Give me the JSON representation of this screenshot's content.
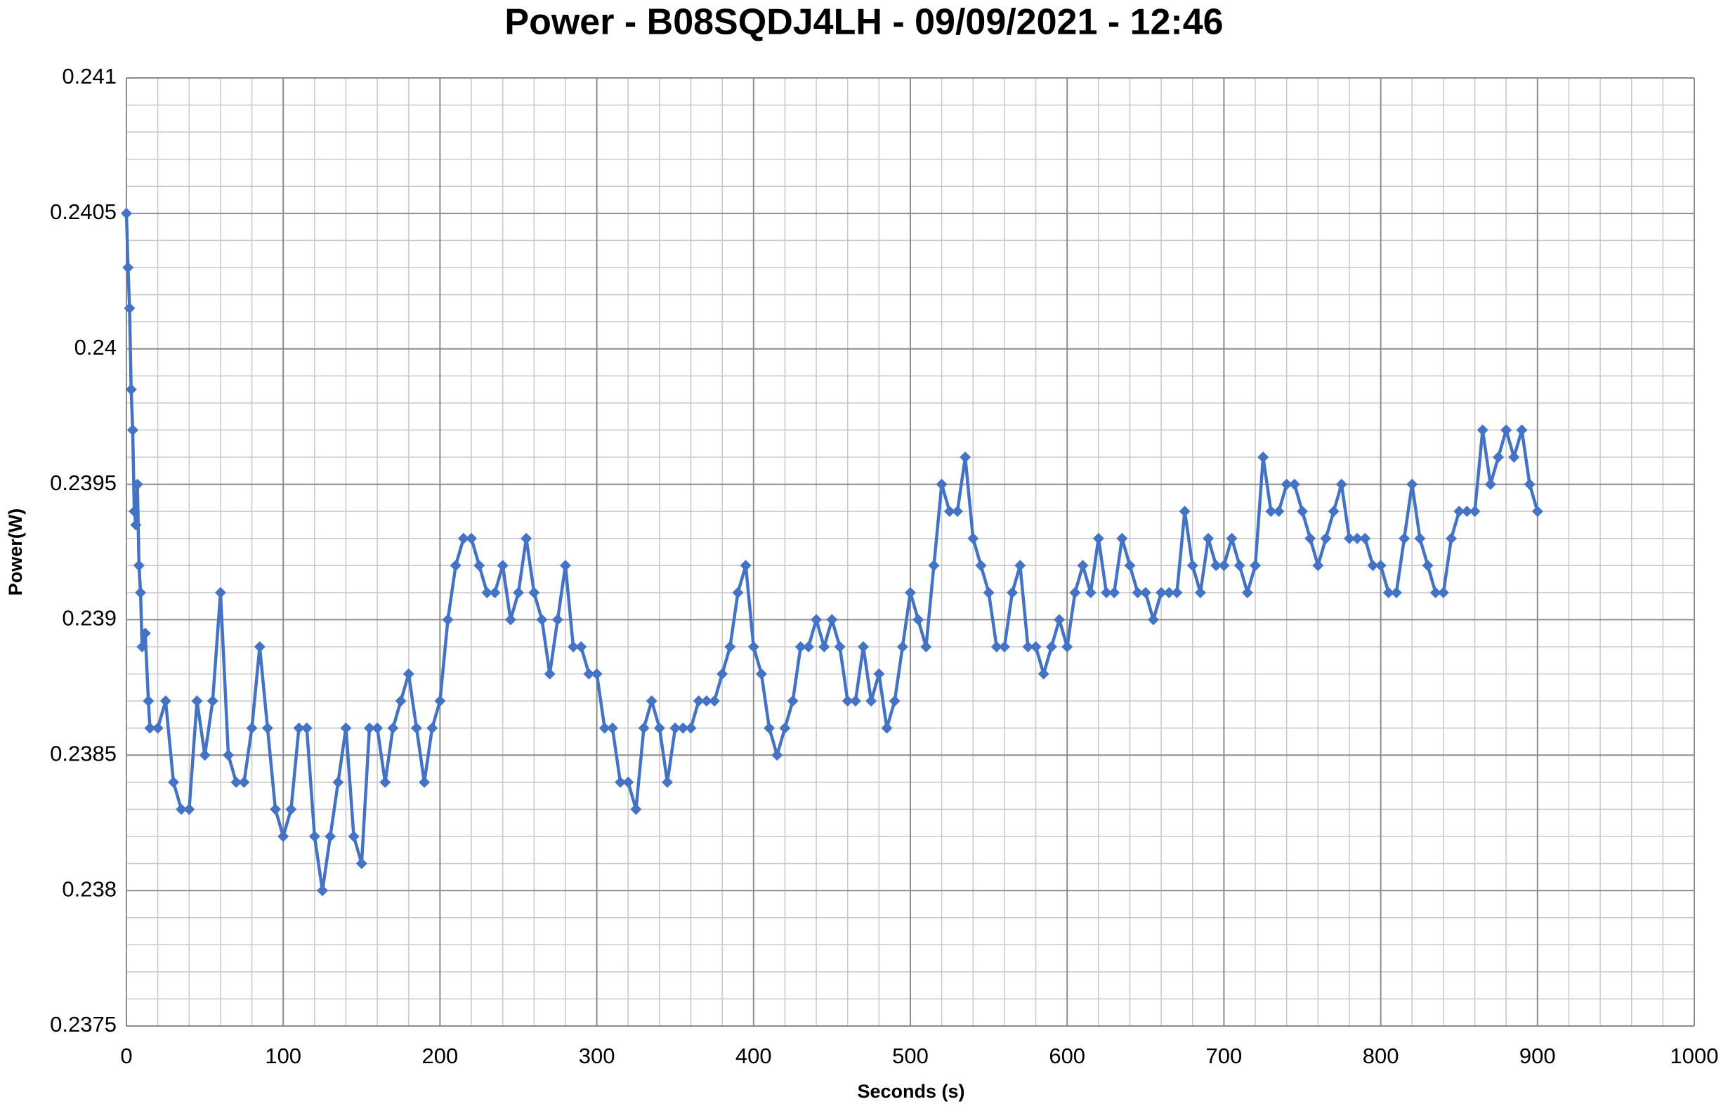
{
  "chart_data": {
    "type": "line",
    "title": "Power - B08SQDJ4LH - 09/09/2021 - 12:46",
    "x_label": "Seconds (s)",
    "y_label": "Power(W)",
    "x": [
      0,
      1,
      2,
      3,
      4,
      5,
      6,
      7,
      8,
      9,
      10,
      12,
      14,
      15,
      20,
      25,
      30,
      35,
      40,
      45,
      50,
      55,
      60,
      65,
      70,
      75,
      80,
      85,
      90,
      95,
      100,
      105,
      110,
      115,
      120,
      125,
      130,
      135,
      140,
      145,
      150,
      155,
      160,
      165,
      170,
      175,
      180,
      185,
      190,
      195,
      200,
      205,
      210,
      215,
      220,
      225,
      230,
      235,
      240,
      245,
      250,
      255,
      260,
      265,
      270,
      275,
      280,
      285,
      290,
      295,
      300,
      305,
      310,
      315,
      320,
      325,
      330,
      335,
      340,
      345,
      350,
      355,
      360,
      365,
      370,
      375,
      380,
      385,
      390,
      395,
      400,
      405,
      410,
      415,
      420,
      425,
      430,
      435,
      440,
      445,
      450,
      455,
      460,
      465,
      470,
      475,
      480,
      485,
      490,
      495,
      500,
      505,
      510,
      515,
      520,
      525,
      530,
      535,
      540,
      545,
      550,
      555,
      560,
      565,
      570,
      575,
      580,
      585,
      590,
      595,
      600,
      605,
      610,
      615,
      620,
      625,
      630,
      635,
      640,
      645,
      650,
      655,
      660,
      665,
      670,
      675,
      680,
      685,
      690,
      695,
      700,
      705,
      710,
      715,
      720,
      725,
      730,
      735,
      740,
      745,
      750,
      755,
      760,
      765,
      770,
      775,
      780,
      785,
      790,
      795,
      800,
      805,
      810,
      815,
      820,
      825,
      830,
      835,
      840,
      845,
      850,
      855,
      860,
      865,
      870,
      875,
      880,
      885,
      890,
      895,
      900
    ],
    "series": [
      {
        "color": "#4472c4",
        "values": [
          0.2405,
          0.2403,
          0.24015,
          0.23985,
          0.2397,
          0.2394,
          0.23935,
          0.2395,
          0.2392,
          0.2391,
          0.2389,
          0.23895,
          0.2387,
          0.2386,
          0.2386,
          0.2387,
          0.2384,
          0.2383,
          0.2383,
          0.2387,
          0.2385,
          0.2387,
          0.2391,
          0.2385,
          0.2384,
          0.2384,
          0.2386,
          0.2389,
          0.2386,
          0.2383,
          0.2382,
          0.2383,
          0.2386,
          0.2386,
          0.2382,
          0.238,
          0.2382,
          0.2384,
          0.2386,
          0.2382,
          0.2381,
          0.2386,
          0.2386,
          0.2384,
          0.2386,
          0.2387,
          0.2388,
          0.2386,
          0.2384,
          0.2386,
          0.2387,
          0.239,
          0.2392,
          0.2393,
          0.2393,
          0.2392,
          0.2391,
          0.2391,
          0.2392,
          0.239,
          0.2391,
          0.2393,
          0.2391,
          0.239,
          0.2388,
          0.239,
          0.2392,
          0.2389,
          0.2389,
          0.2388,
          0.2388,
          0.2386,
          0.2386,
          0.2384,
          0.2384,
          0.2383,
          0.2386,
          0.2387,
          0.2386,
          0.2384,
          0.2386,
          0.2386,
          0.2386,
          0.2387,
          0.2387,
          0.2387,
          0.2388,
          0.2389,
          0.2391,
          0.2392,
          0.2389,
          0.2388,
          0.2386,
          0.2385,
          0.2386,
          0.2387,
          0.2389,
          0.2389,
          0.239,
          0.2389,
          0.239,
          0.2389,
          0.2387,
          0.2387,
          0.2389,
          0.2387,
          0.2388,
          0.2386,
          0.2387,
          0.2389,
          0.2391,
          0.239,
          0.2389,
          0.2392,
          0.2395,
          0.2394,
          0.2394,
          0.2396,
          0.2393,
          0.2392,
          0.2391,
          0.2389,
          0.2389,
          0.2391,
          0.2392,
          0.2389,
          0.2389,
          0.2388,
          0.2389,
          0.239,
          0.2389,
          0.2391,
          0.2392,
          0.2391,
          0.2393,
          0.2391,
          0.2391,
          0.2393,
          0.2392,
          0.2391,
          0.2391,
          0.239,
          0.2391,
          0.2391,
          0.2391,
          0.2394,
          0.2392,
          0.2391,
          0.2393,
          0.2392,
          0.2392,
          0.2393,
          0.2392,
          0.2391,
          0.2392,
          0.2396,
          0.2394,
          0.2394,
          0.2395,
          0.2395,
          0.2394,
          0.2393,
          0.2392,
          0.2393,
          0.2394,
          0.2395,
          0.2393,
          0.2393,
          0.2393,
          0.2392,
          0.2392,
          0.2391,
          0.2391,
          0.2393,
          0.2395,
          0.2393,
          0.2392,
          0.2391,
          0.2391,
          0.2393,
          0.2394,
          0.2394,
          0.2394,
          0.2397,
          0.2395,
          0.2396,
          0.2397,
          0.2396,
          0.2397,
          0.2395,
          0.2394
        ]
      }
    ],
    "xlim": [
      0,
      1000
    ],
    "xticks": [
      0,
      100,
      200,
      300,
      400,
      500,
      600,
      700,
      800,
      900,
      1000
    ],
    "ylim": [
      0.2375,
      0.241
    ],
    "yticks": [
      0.2375,
      0.238,
      0.2385,
      0.239,
      0.2395,
      0.24,
      0.2405,
      0.241
    ],
    "grid": true,
    "markers": "diamond"
  }
}
